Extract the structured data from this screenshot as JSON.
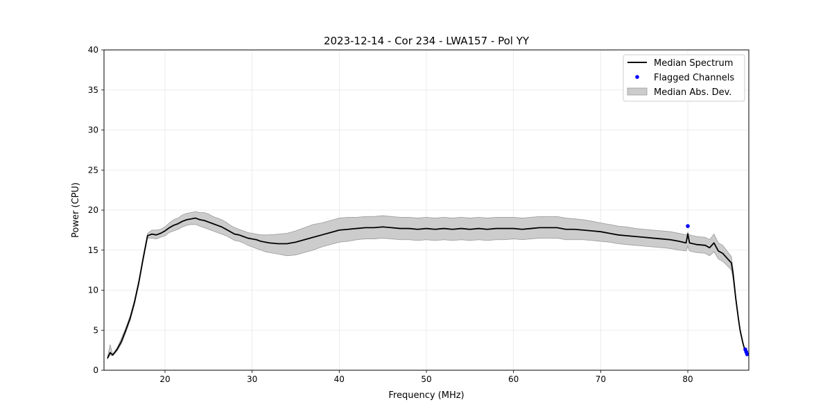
{
  "chart_data": {
    "type": "line",
    "title": "2023-12-14 - Cor 234 - LWA157 - Pol YY",
    "xlabel": "Frequency (MHz)",
    "ylabel": "Power (CPU)",
    "xlim": [
      13,
      87
    ],
    "ylim": [
      0,
      40
    ],
    "xticks": [
      20,
      30,
      40,
      50,
      60,
      70,
      80
    ],
    "yticks": [
      0,
      5,
      10,
      15,
      20,
      25,
      30,
      35,
      40
    ],
    "grid": true,
    "legend_position": "top-right",
    "colors": {
      "median": "#000000",
      "flagged": "#0000ff",
      "band_fill": "#cccccc",
      "band_edge": "#9a9a9a"
    },
    "series": [
      {
        "name": "Median Spectrum",
        "kind": "line",
        "x": [
          13.4,
          13.7,
          14.0,
          14.5,
          15.0,
          15.5,
          16.0,
          16.5,
          17.0,
          17.5,
          18.0,
          18.5,
          19.0,
          19.5,
          20.0,
          20.5,
          21.0,
          21.5,
          22.0,
          22.5,
          23.0,
          23.5,
          24.0,
          24.5,
          25.0,
          25.5,
          26.0,
          26.5,
          27.0,
          27.5,
          28.0,
          28.5,
          29.0,
          29.5,
          30.0,
          30.5,
          31.0,
          31.5,
          32.0,
          33.0,
          34.0,
          35.0,
          36.0,
          37.0,
          38.0,
          39.0,
          40.0,
          41.0,
          42.0,
          43.0,
          44.0,
          45.0,
          46.0,
          47.0,
          48.0,
          49.0,
          50.0,
          51.0,
          52.0,
          53.0,
          54.0,
          55.0,
          56.0,
          57.0,
          58.0,
          59.0,
          60.0,
          61.0,
          62.0,
          63.0,
          64.0,
          65.0,
          66.0,
          67.0,
          68.0,
          69.0,
          70.0,
          71.0,
          72.0,
          73.0,
          74.0,
          75.0,
          76.0,
          77.0,
          78.0,
          79.0,
          79.8,
          80.0,
          80.2,
          81.0,
          82.0,
          82.5,
          83.0,
          83.5,
          84.0,
          84.5,
          85.0,
          85.2,
          85.5,
          85.8,
          86.0,
          86.3,
          86.5,
          86.7,
          86.9
        ],
        "y": [
          1.5,
          2.2,
          1.9,
          2.6,
          3.6,
          5.0,
          6.5,
          8.5,
          11.0,
          14.0,
          16.8,
          17.0,
          16.9,
          17.1,
          17.4,
          17.8,
          18.1,
          18.3,
          18.6,
          18.8,
          18.9,
          19.0,
          18.8,
          18.7,
          18.5,
          18.3,
          18.1,
          17.9,
          17.6,
          17.3,
          17.0,
          16.9,
          16.7,
          16.5,
          16.4,
          16.3,
          16.1,
          16.0,
          15.9,
          15.8,
          15.8,
          16.0,
          16.3,
          16.6,
          16.9,
          17.2,
          17.5,
          17.6,
          17.7,
          17.8,
          17.8,
          17.9,
          17.8,
          17.7,
          17.7,
          17.6,
          17.7,
          17.6,
          17.7,
          17.6,
          17.7,
          17.6,
          17.7,
          17.6,
          17.7,
          17.7,
          17.7,
          17.6,
          17.7,
          17.8,
          17.8,
          17.8,
          17.6,
          17.6,
          17.5,
          17.4,
          17.3,
          17.1,
          16.9,
          16.8,
          16.7,
          16.6,
          16.5,
          16.4,
          16.3,
          16.1,
          15.9,
          17.0,
          15.9,
          15.7,
          15.6,
          15.3,
          15.9,
          14.9,
          14.6,
          14.0,
          13.4,
          12.0,
          9.0,
          6.5,
          5.0,
          3.5,
          2.7,
          2.2,
          2.0
        ]
      },
      {
        "name": "Flagged Channels",
        "kind": "scatter",
        "x": [
          80.0,
          86.6,
          86.7,
          86.8
        ],
        "y": [
          18.0,
          2.6,
          2.3,
          2.0
        ]
      },
      {
        "name": "Median Abs. Dev.",
        "kind": "band",
        "x": [
          13.4,
          13.7,
          14.0,
          14.5,
          15.0,
          15.5,
          16.0,
          16.5,
          17.0,
          17.5,
          18.0,
          18.5,
          19.0,
          19.5,
          20.0,
          20.5,
          21.0,
          21.5,
          22.0,
          22.5,
          23.0,
          23.5,
          24.0,
          24.5,
          25.0,
          25.5,
          26.0,
          26.5,
          27.0,
          27.5,
          28.0,
          28.5,
          29.0,
          29.5,
          30.0,
          30.5,
          31.0,
          31.5,
          32.0,
          33.0,
          34.0,
          35.0,
          36.0,
          37.0,
          38.0,
          39.0,
          40.0,
          41.0,
          42.0,
          43.0,
          44.0,
          45.0,
          46.0,
          47.0,
          48.0,
          49.0,
          50.0,
          51.0,
          52.0,
          53.0,
          54.0,
          55.0,
          56.0,
          57.0,
          58.0,
          59.0,
          60.0,
          61.0,
          62.0,
          63.0,
          64.0,
          65.0,
          66.0,
          67.0,
          68.0,
          69.0,
          70.0,
          71.0,
          72.0,
          73.0,
          74.0,
          75.0,
          76.0,
          77.0,
          78.0,
          79.0,
          79.8,
          80.0,
          80.2,
          81.0,
          82.0,
          82.5,
          83.0,
          83.5,
          84.0,
          84.5,
          85.0,
          85.2,
          85.5,
          85.8,
          86.0,
          86.3,
          86.5,
          86.7,
          86.9
        ],
        "lower": [
          1.4,
          1.9,
          1.8,
          2.4,
          3.3,
          4.7,
          6.2,
          8.2,
          10.7,
          13.7,
          16.5,
          16.5,
          16.4,
          16.6,
          16.8,
          17.2,
          17.4,
          17.6,
          17.9,
          18.1,
          18.2,
          18.2,
          18.0,
          17.8,
          17.6,
          17.4,
          17.2,
          17.0,
          16.8,
          16.5,
          16.2,
          16.1,
          15.9,
          15.6,
          15.4,
          15.2,
          15.0,
          14.8,
          14.7,
          14.5,
          14.3,
          14.4,
          14.7,
          15.0,
          15.4,
          15.7,
          16.0,
          16.1,
          16.3,
          16.4,
          16.4,
          16.5,
          16.4,
          16.3,
          16.3,
          16.2,
          16.3,
          16.2,
          16.3,
          16.2,
          16.3,
          16.2,
          16.3,
          16.2,
          16.3,
          16.3,
          16.4,
          16.3,
          16.4,
          16.5,
          16.5,
          16.5,
          16.3,
          16.3,
          16.3,
          16.2,
          16.1,
          16.0,
          15.8,
          15.7,
          15.6,
          15.5,
          15.4,
          15.3,
          15.2,
          15.0,
          14.9,
          15.5,
          14.9,
          14.7,
          14.6,
          14.3,
          14.8,
          13.9,
          13.6,
          13.1,
          12.5,
          11.4,
          8.6,
          6.2,
          4.8,
          3.3,
          2.6,
          2.1,
          1.9
        ],
        "upper": [
          1.6,
          3.2,
          2.0,
          2.8,
          4.0,
          5.3,
          6.8,
          8.8,
          11.3,
          14.3,
          17.1,
          17.5,
          17.5,
          17.6,
          17.9,
          18.4,
          18.8,
          19.0,
          19.4,
          19.6,
          19.7,
          19.8,
          19.7,
          19.7,
          19.5,
          19.2,
          19.0,
          18.8,
          18.5,
          18.1,
          17.8,
          17.6,
          17.4,
          17.2,
          17.1,
          17.0,
          16.9,
          16.9,
          16.9,
          17.0,
          17.1,
          17.4,
          17.8,
          18.2,
          18.4,
          18.7,
          19.0,
          19.1,
          19.1,
          19.2,
          19.2,
          19.3,
          19.2,
          19.1,
          19.1,
          19.0,
          19.1,
          19.0,
          19.1,
          19.0,
          19.1,
          19.0,
          19.1,
          19.0,
          19.1,
          19.1,
          19.1,
          19.0,
          19.1,
          19.2,
          19.2,
          19.2,
          19.0,
          18.9,
          18.8,
          18.6,
          18.4,
          18.2,
          18.0,
          17.9,
          17.7,
          17.6,
          17.5,
          17.4,
          17.3,
          17.1,
          16.9,
          17.2,
          16.9,
          16.7,
          16.6,
          16.3,
          17.0,
          15.9,
          15.6,
          14.9,
          14.2,
          12.6,
          9.4,
          6.8,
          5.2,
          3.7,
          2.8,
          2.3,
          2.1
        ]
      }
    ]
  }
}
